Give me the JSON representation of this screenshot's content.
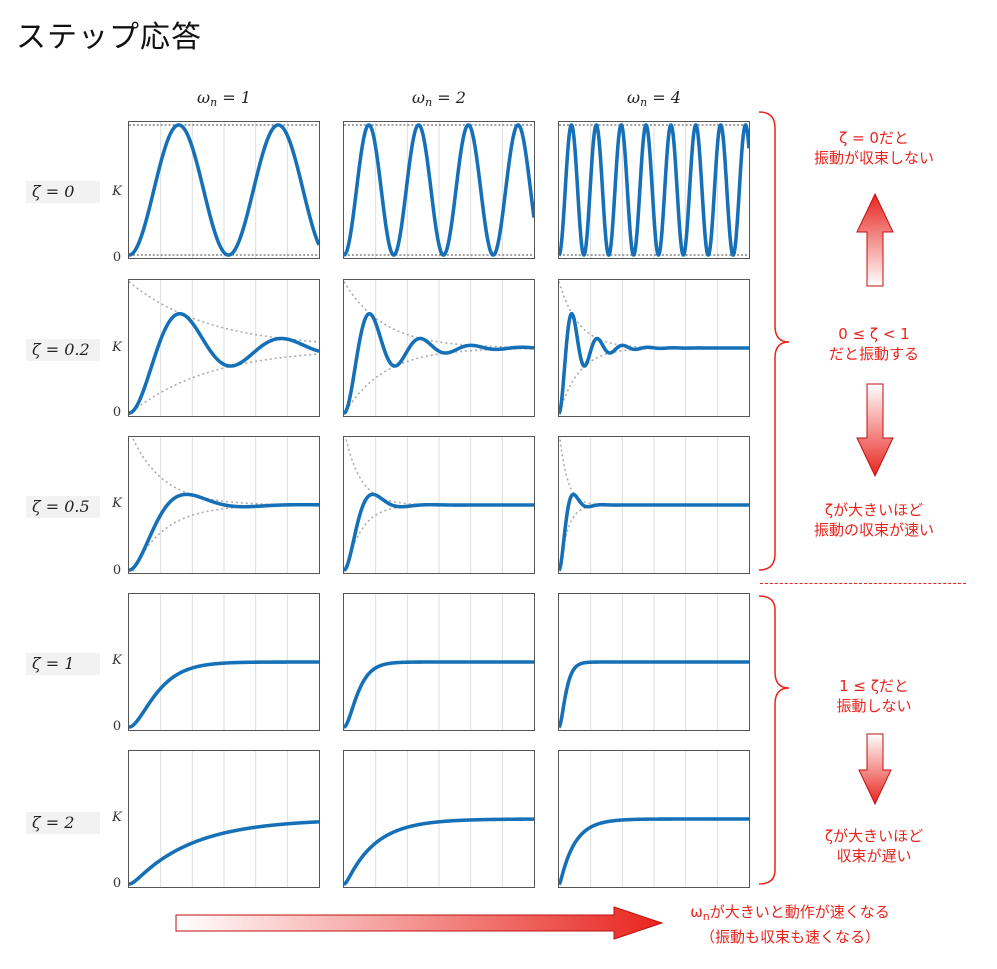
{
  "title": "ステップ応答",
  "columns": [
    {
      "sym": "ω",
      "sub": "n",
      "rest": " = 1",
      "wn": 1
    },
    {
      "sym": "ω",
      "sub": "n",
      "rest": " = 2",
      "wn": 2
    },
    {
      "sym": "ω",
      "sub": "n",
      "rest": " = 4",
      "wn": 4
    }
  ],
  "rows": [
    {
      "label": "ζ = 0",
      "zeta": 0
    },
    {
      "label": "ζ = 0.2",
      "zeta": 0.2
    },
    {
      "label": "ζ = 0.5",
      "zeta": 0.5
    },
    {
      "label": "ζ = 1",
      "zeta": 1
    },
    {
      "label": "ζ = 2",
      "zeta": 2
    }
  ],
  "axis": {
    "k_label": "K",
    "zero_label": "0"
  },
  "notes": {
    "zeta0_line1": "ζ = 0だと",
    "zeta0_line2": "振動が収束しない",
    "under1_line1": "0 ≤ ζ < 1",
    "under1_line2": "だと振動する",
    "big_zeta_line1": "ζが大きいほど",
    "big_zeta_line2": "振動の収束が速い",
    "over1_line1": "1 ≤ ζだと",
    "over1_line2": "振動しない",
    "big_zeta2_line1": "ζが大きいほど",
    "big_zeta2_line2": "収束が遅い",
    "wn_sym": "ω",
    "wn_sub": "n",
    "wn_line1_rest": "が大きいと動作が速くなる",
    "wn_line2": "（振動も収束も速くなる）"
  },
  "colors": {
    "curve": "#1570b8",
    "accent": "#e8241d",
    "envelope": "#aaaaaa",
    "grid": "#dddddd"
  }
}
